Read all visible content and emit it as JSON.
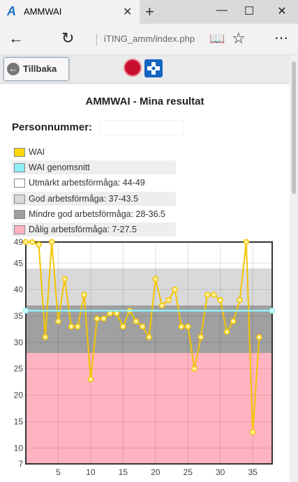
{
  "browser": {
    "tab_title": "AMMWAI",
    "tab_logo": "A",
    "url": "iTING_amm/index.php",
    "icons": [
      "close-icon",
      "plus-icon",
      "minimize-icon",
      "maximize-icon",
      "window-close-icon",
      "back-arrow-icon",
      "refresh-icon",
      "reading-view-icon",
      "favorite-star-icon",
      "more-icon"
    ]
  },
  "appbar": {
    "back_label": "Tillbaka"
  },
  "page": {
    "title": "AMMWAI - Mina resultat",
    "personnummer_label": "Personnummer:",
    "personnummer_value": ""
  },
  "legend": [
    {
      "label": "WAI",
      "color": "#ffd700"
    },
    {
      "label": "WAI genomsnitt",
      "color": "#8ef0f8"
    },
    {
      "label": "Utmärkt arbetsförmåga: 44-49",
      "color": "#ffffff"
    },
    {
      "label": "God arbetsförmåga: 37-43.5",
      "color": "#d9d9d9"
    },
    {
      "label": "Mindre god arbetsförmåga: 28-36.5",
      "color": "#a0a0a0"
    },
    {
      "label": "Dålig arbetsförmåga: 7-27.5",
      "color": "#ffb3c1"
    }
  ],
  "chart_data": {
    "type": "line",
    "xlim": [
      0,
      38
    ],
    "ylim": [
      7,
      49
    ],
    "x_ticks": [
      5,
      10,
      15,
      20,
      25,
      30,
      35
    ],
    "y_ticks": [
      7,
      10,
      15,
      20,
      25,
      30,
      35,
      40,
      45,
      49
    ],
    "grid": true,
    "bands": [
      {
        "from": 44,
        "to": 49,
        "color": "#ffffff"
      },
      {
        "from": 37,
        "to": 44,
        "color": "#d9d9d9"
      },
      {
        "from": 28,
        "to": 37,
        "color": "#a0a0a0"
      },
      {
        "from": 7,
        "to": 28,
        "color": "#ffb3c1"
      }
    ],
    "series": [
      {
        "name": "WAI",
        "color": "#f5c400",
        "x": [
          0,
          1,
          2,
          3,
          4,
          5,
          6,
          7,
          8,
          9,
          10,
          11,
          12,
          13,
          14,
          15,
          16,
          17,
          18,
          19,
          20,
          21,
          22,
          23,
          24,
          25,
          26,
          27,
          28,
          29,
          30,
          31,
          32,
          33,
          34,
          35,
          36,
          37
        ],
        "values": [
          49,
          49,
          48.5,
          31,
          49,
          34,
          42,
          33,
          33,
          39,
          23,
          34.5,
          34.5,
          35.5,
          35.5,
          33,
          36,
          34,
          33,
          31,
          42,
          37,
          38,
          40,
          33,
          33,
          25,
          31,
          39,
          39,
          38,
          32,
          34,
          38,
          49,
          13,
          31,
          null
        ]
      },
      {
        "name": "WAI genomsnitt",
        "color": "#8ef0f8",
        "x": [
          0,
          38
        ],
        "values": [
          36,
          36
        ]
      }
    ]
  }
}
